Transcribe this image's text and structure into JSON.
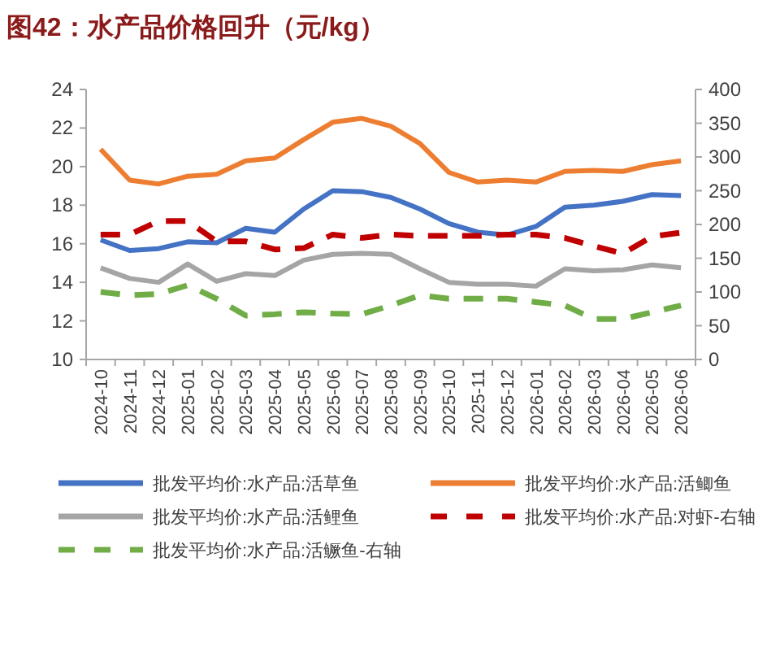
{
  "chart_data": {
    "type": "line",
    "title": "图42：水产品价格回升（元/kg）",
    "categories": [
      "2024-10",
      "2024-11",
      "2024-12",
      "2025-01",
      "2025-02",
      "2025-03",
      "2025-04",
      "2025-05",
      "2025-06",
      "2025-07",
      "2025-08",
      "2025-09",
      "2025-10",
      "2025-11",
      "2025-12",
      "2026-01",
      "2026-02",
      "2026-03",
      "2026-04",
      "2026-05",
      "2026-06"
    ],
    "series": [
      {
        "name": "批发平均价:水产品:活草鱼",
        "color": "#4472c4",
        "line_style": "solid",
        "values": [
          16.2,
          15.65,
          15.75,
          16.1,
          16.05,
          16.8,
          16.6,
          17.8,
          18.75,
          18.7,
          18.4,
          17.8,
          17.05,
          16.6,
          16.45,
          16.9,
          17.9,
          18.0,
          18.2,
          18.55,
          18.5
        ]
      },
      {
        "name": "批发平均价:水产品:活鲫鱼",
        "color": "#ed7d31",
        "line_style": "solid",
        "values": [
          20.9,
          19.3,
          19.1,
          19.5,
          19.6,
          20.3,
          20.45,
          21.4,
          22.3,
          22.5,
          22.1,
          21.2,
          19.7,
          19.2,
          19.3,
          19.2,
          19.75,
          19.8,
          19.75,
          20.1,
          20.3
        ]
      },
      {
        "name": "批发平均价:水产品:活鲤鱼",
        "color": "#a5a5a5",
        "line_style": "solid",
        "values": [
          14.75,
          14.2,
          14.0,
          14.95,
          14.05,
          14.45,
          14.35,
          15.15,
          15.45,
          15.5,
          15.45,
          14.7,
          14.0,
          13.9,
          13.9,
          13.8,
          14.7,
          14.6,
          14.65,
          14.9,
          14.75
        ]
      },
      {
        "name": "批发平均价:水产品:对虾-右轴",
        "color": "#c00000",
        "line_style": "dashed",
        "axis": "y2",
        "values": [
          185,
          185,
          205,
          205,
          175,
          175,
          163,
          165,
          185,
          180,
          185,
          183,
          183,
          183,
          185,
          185,
          180,
          168,
          157,
          182,
          188
        ]
      },
      {
        "name": "批发平均价:水产品:活鳜鱼-右轴",
        "color": "#70ad47",
        "line_style": "dashed",
        "axis": "y2",
        "values": [
          100,
          95,
          97,
          110,
          90,
          65,
          67,
          70,
          68,
          67,
          80,
          95,
          90,
          90,
          90,
          85,
          80,
          60,
          60,
          70,
          80
        ]
      }
    ],
    "ylim": [
      10,
      24
    ],
    "yticks": [
      10,
      12,
      14,
      16,
      18,
      20,
      22,
      24
    ],
    "y2lim": [
      0,
      400
    ],
    "y2ticks": [
      0,
      50,
      100,
      150,
      200,
      250,
      300,
      350,
      400
    ],
    "grid": false,
    "legend": "bottom",
    "marker": "none"
  }
}
